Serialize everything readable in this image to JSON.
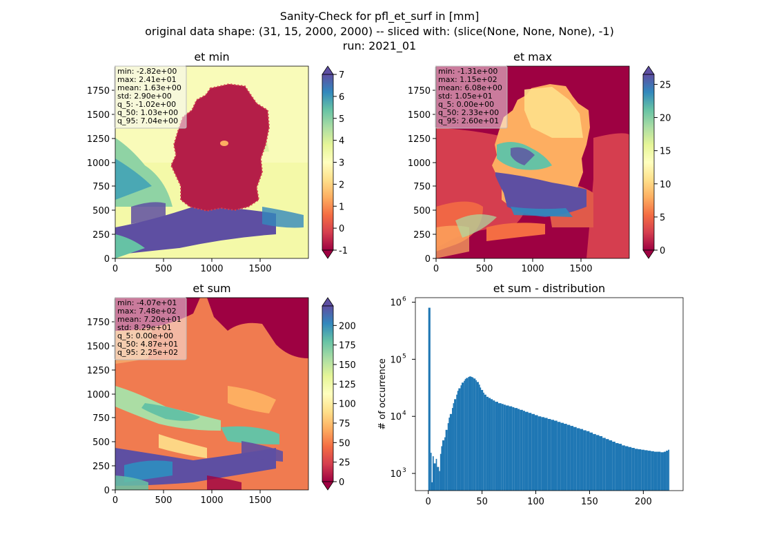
{
  "figure": {
    "title_lines": [
      "Sanity-Check for pfl_et_surf in [mm]",
      "original data shape: (31, 15, 2000, 2000) -- sliced with: (slice(None, None, None), -1)",
      "run: 2021_01"
    ]
  },
  "chart_data": [
    {
      "type": "heatmap",
      "title": "et min",
      "xlim": [
        0,
        2000
      ],
      "ylim": [
        0,
        2000
      ],
      "xticks": [
        0,
        500,
        1000,
        1500
      ],
      "yticks": [
        0,
        250,
        500,
        750,
        1000,
        1250,
        1500,
        1750
      ],
      "colormap": "Spectral",
      "colorbar": {
        "range": [
          -1,
          7
        ],
        "ticks": [
          -1,
          0,
          1,
          2,
          3,
          4,
          5,
          6,
          7
        ],
        "extend": "both"
      },
      "stats": [
        "min: -2.82e+00",
        "max: 2.41e+01",
        "mean: 1.63e+00",
        "std: 2.90e+00",
        "q_5: -1.02e+00",
        "q_50: 1.03e+00",
        "q_95: 7.04e+00"
      ]
    },
    {
      "type": "heatmap",
      "title": "et max",
      "xlim": [
        0,
        2000
      ],
      "ylim": [
        0,
        2000
      ],
      "xticks": [
        0,
        500,
        1000,
        1500
      ],
      "yticks": [
        0,
        250,
        500,
        750,
        1000,
        1250,
        1500,
        1750
      ],
      "colormap": "Spectral",
      "colorbar": {
        "range": [
          0,
          26.5
        ],
        "ticks": [
          0,
          5,
          10,
          15,
          20,
          25
        ],
        "extend": "both"
      },
      "stats": [
        "min: -1.31e+00",
        "max: 1.15e+02",
        "mean: 6.08e+00",
        "std: 1.05e+01",
        "q_5: 0.00e+00",
        "q_50: 2.33e+00",
        "q_95: 2.60e+01"
      ]
    },
    {
      "type": "heatmap",
      "title": "et sum",
      "xlim": [
        0,
        2000
      ],
      "ylim": [
        0,
        2000
      ],
      "xticks": [
        0,
        500,
        1000,
        1500
      ],
      "yticks": [
        0,
        250,
        500,
        750,
        1000,
        1250,
        1500,
        1750
      ],
      "colormap": "Spectral",
      "colorbar": {
        "range": [
          0,
          225
        ],
        "ticks": [
          0,
          25,
          50,
          75,
          100,
          125,
          150,
          175,
          200
        ],
        "extend": "both"
      },
      "stats": [
        "min: -4.07e+01",
        "max: 7.48e+02",
        "mean: 7.20e+01",
        "std: 8.29e+01",
        "q_5: 0.00e+00",
        "q_50: 4.87e+01",
        "q_95: 2.25e+02"
      ]
    },
    {
      "type": "bar",
      "title": "et sum - distribution",
      "ylabel": "# of occurrence",
      "yscale": "log",
      "xlim": [
        -12,
        237
      ],
      "ylim": [
        500,
        1200000
      ],
      "xticks": [
        0,
        50,
        100,
        150,
        200
      ],
      "yticks": [
        {
          "label": "10",
          "exp": "3",
          "value": 1000
        },
        {
          "label": "10",
          "exp": "4",
          "value": 10000
        },
        {
          "label": "10",
          "exp": "5",
          "value": 100000
        },
        {
          "label": "10",
          "exp": "6",
          "value": 1000000
        }
      ],
      "bar_color": "#1f77b4",
      "bins": [
        [
          0,
          800000
        ],
        [
          2,
          2300
        ],
        [
          3,
          700
        ],
        [
          4,
          2000
        ],
        [
          5,
          1500
        ],
        [
          7,
          1800
        ],
        [
          8,
          1300
        ],
        [
          10,
          1100
        ],
        [
          11,
          2200
        ],
        [
          12,
          3000
        ],
        [
          13,
          3800
        ],
        [
          15,
          4300
        ],
        [
          16,
          5800
        ],
        [
          18,
          7600
        ],
        [
          19,
          9500
        ],
        [
          20,
          11000
        ],
        [
          22,
          14000
        ],
        [
          23,
          17000
        ],
        [
          24,
          20000
        ],
        [
          26,
          24000
        ],
        [
          27,
          28000
        ],
        [
          28,
          31000
        ],
        [
          30,
          35000
        ],
        [
          31,
          39000
        ],
        [
          33,
          42000
        ],
        [
          34,
          45000
        ],
        [
          35,
          47000
        ],
        [
          37,
          49000
        ],
        [
          38,
          50000
        ],
        [
          40,
          49000
        ],
        [
          41,
          48000
        ],
        [
          42,
          46000
        ],
        [
          44,
          43000
        ],
        [
          45,
          40000
        ],
        [
          47,
          36000
        ],
        [
          48,
          32000
        ],
        [
          49,
          29000
        ],
        [
          51,
          26000
        ],
        [
          52,
          24000
        ],
        [
          54,
          22000
        ],
        [
          56,
          21000
        ],
        [
          58,
          20000
        ],
        [
          60,
          19000
        ],
        [
          62,
          18000
        ],
        [
          65,
          17000
        ],
        [
          68,
          16500
        ],
        [
          70,
          16000
        ],
        [
          72,
          15500
        ],
        [
          75,
          15000
        ],
        [
          78,
          14500
        ],
        [
          80,
          14000
        ],
        [
          83,
          13500
        ],
        [
          85,
          13000
        ],
        [
          88,
          12500
        ],
        [
          90,
          12000
        ],
        [
          93,
          11500
        ],
        [
          96,
          11000
        ],
        [
          99,
          10500
        ],
        [
          102,
          10000
        ],
        [
          105,
          9700
        ],
        [
          108,
          9400
        ],
        [
          111,
          9000
        ],
        [
          114,
          8700
        ],
        [
          117,
          8400
        ],
        [
          120,
          8000
        ],
        [
          123,
          7700
        ],
        [
          126,
          7400
        ],
        [
          129,
          7100
        ],
        [
          132,
          6800
        ],
        [
          135,
          6500
        ],
        [
          138,
          6200
        ],
        [
          141,
          6000
        ],
        [
          144,
          5700
        ],
        [
          147,
          5500
        ],
        [
          150,
          5200
        ],
        [
          153,
          4900
        ],
        [
          156,
          4700
        ],
        [
          159,
          4500
        ],
        [
          162,
          4200
        ],
        [
          165,
          4000
        ],
        [
          168,
          3800
        ],
        [
          171,
          3600
        ],
        [
          174,
          3400
        ],
        [
          177,
          3300
        ],
        [
          180,
          3100
        ],
        [
          183,
          3000
        ],
        [
          186,
          2900
        ],
        [
          189,
          2800
        ],
        [
          192,
          2700
        ],
        [
          195,
          2650
        ],
        [
          198,
          2600
        ],
        [
          201,
          2550
        ],
        [
          204,
          2500
        ],
        [
          207,
          2450
        ],
        [
          210,
          2400
        ],
        [
          213,
          2400
        ],
        [
          216,
          2350
        ],
        [
          219,
          2400
        ],
        [
          221,
          2500
        ],
        [
          223,
          2600
        ]
      ]
    }
  ]
}
